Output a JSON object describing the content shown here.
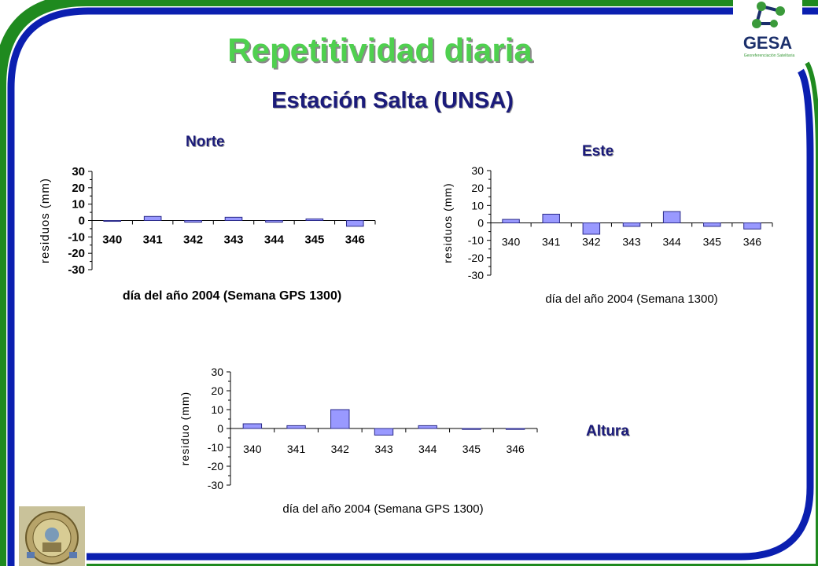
{
  "title": "Repetitividad diaria",
  "subtitle": "Estación Salta (UNSA)",
  "logo": {
    "text": "GESA",
    "tagline": "Georeferenciación Satelitaria",
    "accent": "#3a9a3a",
    "text_color": "#1b2f6b"
  },
  "seal": {
    "text": "UNIVERSIDAD NACIONAL DE LA PLATA"
  },
  "colors": {
    "frame_blue": "#0b1fb0",
    "frame_green": "#1f8a1f",
    "bar_fill": "#9999ff",
    "bar_stroke": "#2b2b8a"
  },
  "chart_data": [
    {
      "type": "bar",
      "title": "Norte",
      "categories": [
        "340",
        "341",
        "342",
        "343",
        "344",
        "345",
        "346"
      ],
      "values": [
        -0.5,
        2.5,
        -1,
        2,
        -1,
        1,
        -3.5
      ],
      "ylabel": "residuos (mm)",
      "xlabel": "día del año 2004 (Semana GPS 1300)",
      "ylim": [
        -30,
        30
      ],
      "yticks": [
        "30",
        "20",
        "10",
        "0",
        "-10",
        "-20",
        "-30"
      ],
      "grid": false,
      "legend": "none"
    },
    {
      "type": "bar",
      "title": "Este",
      "categories": [
        "340",
        "341",
        "342",
        "343",
        "344",
        "345",
        "346"
      ],
      "values": [
        2,
        5,
        -6.5,
        -2,
        6.5,
        -2,
        -3.5
      ],
      "ylabel": "residuos (mm)",
      "xlabel": "día del año 2004 (Semana 1300)",
      "ylim": [
        -30,
        30
      ],
      "yticks": [
        "30",
        "20",
        "10",
        "0",
        "-10",
        "-20",
        "-30"
      ],
      "grid": false,
      "legend": "none"
    },
    {
      "type": "bar",
      "title": "Altura",
      "categories": [
        "340",
        "341",
        "342",
        "343",
        "344",
        "345",
        "346"
      ],
      "values": [
        2.5,
        1.5,
        10,
        -3.5,
        1.5,
        -0.5,
        -0.5
      ],
      "ylabel": "residuo (mm)",
      "xlabel": "día del año 2004 (Semana GPS 1300)",
      "ylim": [
        -30,
        30
      ],
      "yticks": [
        "30",
        "20",
        "10",
        "0",
        "-10",
        "-20",
        "-30"
      ],
      "grid": false,
      "legend": "none"
    }
  ]
}
